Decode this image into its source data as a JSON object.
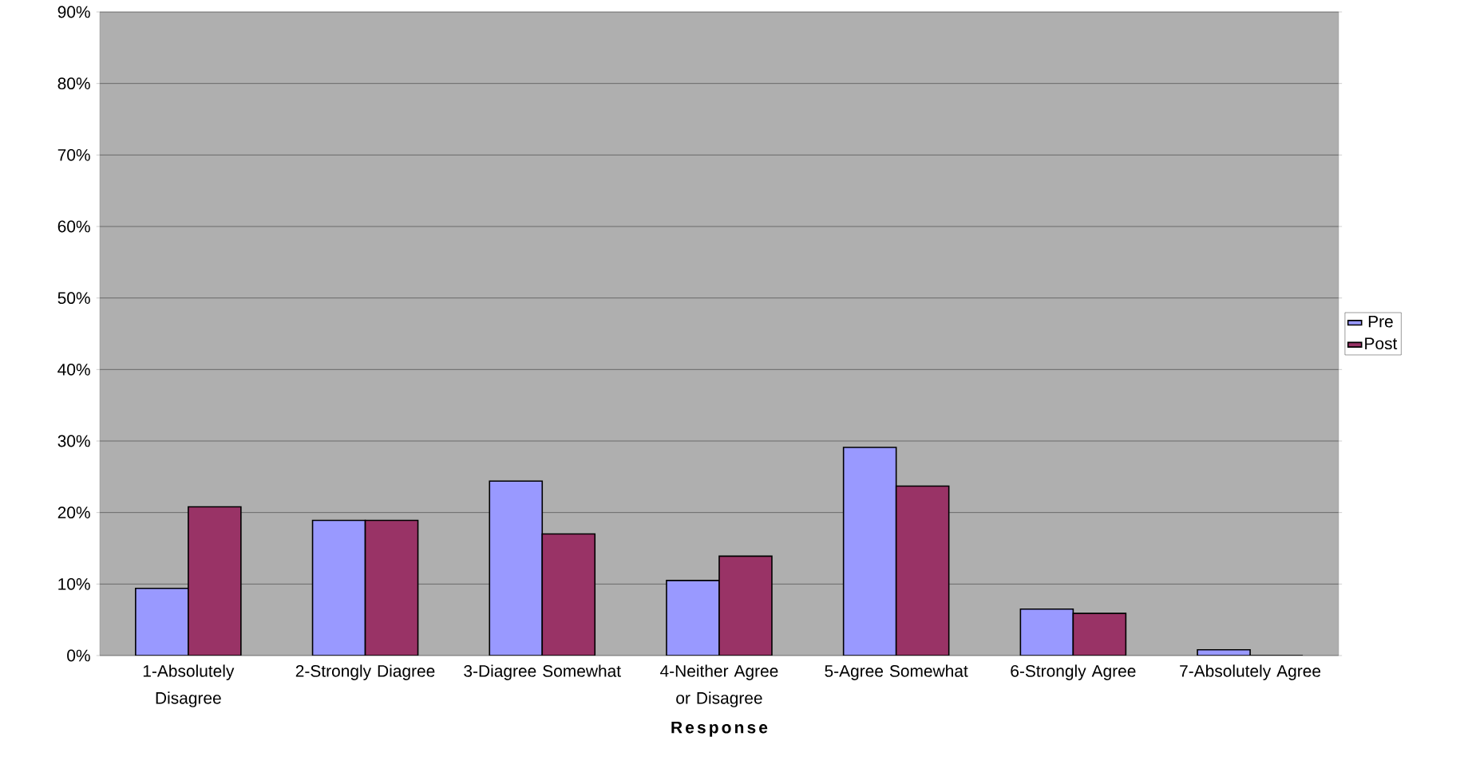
{
  "chart_data": {
    "type": "bar",
    "xlabel": "Response",
    "categories": [
      "1-Absolutely Disagree",
      "2-Strongly Diagree",
      "3-Diagree Somewhat",
      "4-Neither Agree or Disagree",
      "5-Agree Somewhat",
      "6-Strongly Agree",
      "7-Absolutely Agree"
    ],
    "series": [
      {
        "name": "Pre",
        "color": "#9999ff",
        "values": [
          9.4,
          18.9,
          24.4,
          10.5,
          29.1,
          6.5,
          0.8
        ]
      },
      {
        "name": "Post",
        "color": "#993366",
        "values": [
          20.8,
          18.9,
          17.0,
          13.9,
          23.7,
          5.9,
          0
        ]
      }
    ],
    "ylim": [
      0,
      90
    ],
    "yticks": [
      {
        "value": 0,
        "label": "0%"
      },
      {
        "value": 10,
        "label": "10%"
      },
      {
        "value": 20,
        "label": "20%"
      },
      {
        "value": 30,
        "label": "30%"
      },
      {
        "value": 40,
        "label": "40%"
      },
      {
        "value": 50,
        "label": "50%"
      },
      {
        "value": 60,
        "label": "60%"
      },
      {
        "value": 70,
        "label": "70%"
      },
      {
        "value": 80,
        "label": "80%"
      },
      {
        "value": 90,
        "label": "90%"
      }
    ],
    "grid": "y",
    "legend": "right"
  }
}
